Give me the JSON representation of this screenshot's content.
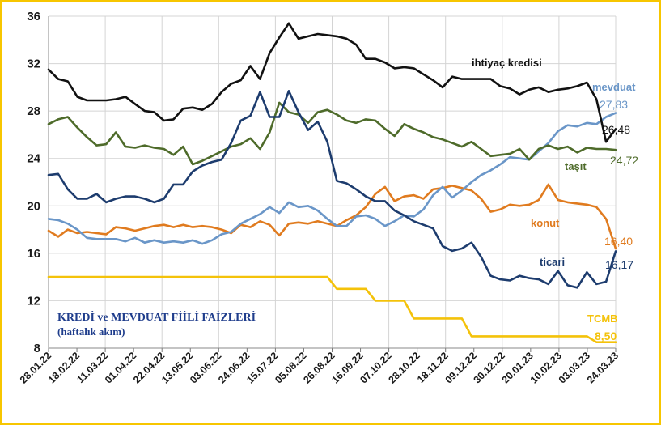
{
  "chart_data": {
    "type": "line",
    "title": "KREDİ ve MEVDUAT FİİLİ FAİZLERİ",
    "subtitle": "(haftalık akım)",
    "xlabel": "",
    "ylabel": "",
    "ylim": [
      8,
      36
    ],
    "yticks": [
      "8",
      "12",
      "16",
      "20",
      "24",
      "28",
      "32",
      "36"
    ],
    "xticks": [
      "28.01.22",
      "18.02.22",
      "11.03.22",
      "01.04.22",
      "22.04.22",
      "13.05.22",
      "03.06.22",
      "24.06.22",
      "15.07.22",
      "05.08.22",
      "26.08.22",
      "16.09.22",
      "07.10.22",
      "28.10.22",
      "18.11.22",
      "09.12.22",
      "30.12.22",
      "20.01.23",
      "10.02.23",
      "03.03.23",
      "24.03.23"
    ],
    "n_points": 60,
    "grid": true,
    "series": [
      {
        "name": "ihtiyaç kredisi",
        "color": "#111111",
        "last_label": "26,48",
        "values": [
          31.5,
          30.7,
          30.5,
          29.2,
          28.9,
          28.9,
          28.9,
          29.0,
          29.2,
          28.6,
          28.0,
          27.9,
          27.2,
          27.3,
          28.2,
          28.3,
          28.1,
          28.6,
          29.6,
          30.3,
          30.6,
          31.8,
          30.7,
          32.9,
          34.2,
          35.4,
          34.1,
          34.3,
          34.5,
          34.4,
          34.3,
          34.1,
          33.6,
          32.4,
          32.4,
          32.1,
          31.6,
          31.7,
          31.6,
          31.1,
          30.6,
          30.0,
          30.9,
          30.7,
          30.7,
          30.7,
          30.7,
          30.1,
          29.9,
          29.4,
          29.8,
          30.0,
          29.6,
          29.8,
          29.9,
          30.1,
          30.4,
          29.0,
          25.4,
          26.48
        ]
      },
      {
        "name": "mevduat",
        "color": "#6a96c8",
        "last_label": "27,83",
        "values": [
          18.9,
          18.8,
          18.5,
          18.0,
          17.3,
          17.2,
          17.2,
          17.2,
          17.0,
          17.3,
          16.9,
          17.1,
          16.9,
          17.0,
          16.9,
          17.1,
          16.8,
          17.1,
          17.6,
          17.8,
          18.5,
          18.9,
          19.3,
          19.9,
          19.4,
          20.3,
          19.9,
          20.0,
          19.6,
          18.9,
          18.3,
          18.3,
          19.1,
          19.2,
          18.9,
          18.3,
          18.7,
          19.2,
          19.1,
          19.7,
          20.9,
          21.6,
          20.7,
          21.3,
          22.0,
          22.6,
          23.0,
          23.5,
          24.1,
          24.0,
          23.9,
          24.6,
          25.3,
          26.3,
          26.8,
          26.7,
          27.0,
          26.9,
          27.5,
          27.83
        ]
      },
      {
        "name": "taşıt",
        "color": "#4e6b2a",
        "last_label": "24,72",
        "values": [
          26.9,
          27.3,
          27.5,
          26.6,
          25.8,
          25.1,
          25.2,
          26.2,
          25.0,
          24.9,
          25.1,
          24.9,
          24.8,
          24.3,
          25.0,
          23.5,
          23.8,
          24.2,
          24.6,
          25.0,
          25.2,
          25.7,
          24.8,
          26.2,
          28.7,
          27.9,
          27.7,
          27.0,
          27.9,
          28.1,
          27.7,
          27.2,
          27.0,
          27.3,
          27.2,
          26.5,
          25.9,
          26.9,
          26.5,
          26.2,
          25.8,
          25.6,
          25.3,
          25.0,
          25.4,
          24.8,
          24.2,
          24.3,
          24.4,
          24.8,
          23.9,
          24.8,
          25.1,
          24.8,
          25.0,
          24.5,
          24.9,
          24.8,
          24.8,
          24.72
        ]
      },
      {
        "name": "konut",
        "color": "#e07b1f",
        "last_label": "16,40",
        "values": [
          17.9,
          17.4,
          18.0,
          17.7,
          17.8,
          17.7,
          17.6,
          18.2,
          18.1,
          17.9,
          18.1,
          18.3,
          18.4,
          18.2,
          18.4,
          18.2,
          18.3,
          18.2,
          18.0,
          17.7,
          18.4,
          18.2,
          18.7,
          18.4,
          17.5,
          18.5,
          18.6,
          18.5,
          18.7,
          18.5,
          18.3,
          18.8,
          19.2,
          19.9,
          21.0,
          21.6,
          20.4,
          20.8,
          20.9,
          20.6,
          21.4,
          21.5,
          21.7,
          21.5,
          21.3,
          20.6,
          19.5,
          19.7,
          20.1,
          20.0,
          20.1,
          20.5,
          21.8,
          20.5,
          20.3,
          20.2,
          20.1,
          19.9,
          18.9,
          16.4
        ]
      },
      {
        "name": "ticari",
        "color": "#1d3c6e",
        "last_label": "16,17",
        "values": [
          22.6,
          22.7,
          21.4,
          20.6,
          20.6,
          21.0,
          20.3,
          20.6,
          20.8,
          20.8,
          20.6,
          20.3,
          20.6,
          21.8,
          21.8,
          22.9,
          23.4,
          23.7,
          23.9,
          25.3,
          27.2,
          27.6,
          29.6,
          27.5,
          27.5,
          29.7,
          27.9,
          26.4,
          27.1,
          25.4,
          22.1,
          21.9,
          21.4,
          20.8,
          20.4,
          20.4,
          19.6,
          19.2,
          18.7,
          18.4,
          18.1,
          16.6,
          16.2,
          16.4,
          16.9,
          15.7,
          14.1,
          13.8,
          13.7,
          14.1,
          13.9,
          13.8,
          13.4,
          14.5,
          13.3,
          13.1,
          14.4,
          13.4,
          13.6,
          16.17
        ]
      },
      {
        "name": "TCMB",
        "color": "#f4c20a",
        "last_label": "8,50",
        "values": [
          14,
          14,
          14,
          14,
          14,
          14,
          14,
          14,
          14,
          14,
          14,
          14,
          14,
          14,
          14,
          14,
          14,
          14,
          14,
          14,
          14,
          14,
          14,
          14,
          14,
          14,
          14,
          14,
          14,
          14,
          13,
          13,
          13,
          13,
          12,
          12,
          12,
          12,
          10.5,
          10.5,
          10.5,
          10.5,
          10.5,
          10.5,
          9,
          9,
          9,
          9,
          9,
          9,
          9,
          9,
          9,
          9,
          9,
          9,
          9,
          8.5,
          8.5,
          8.5
        ]
      }
    ]
  }
}
